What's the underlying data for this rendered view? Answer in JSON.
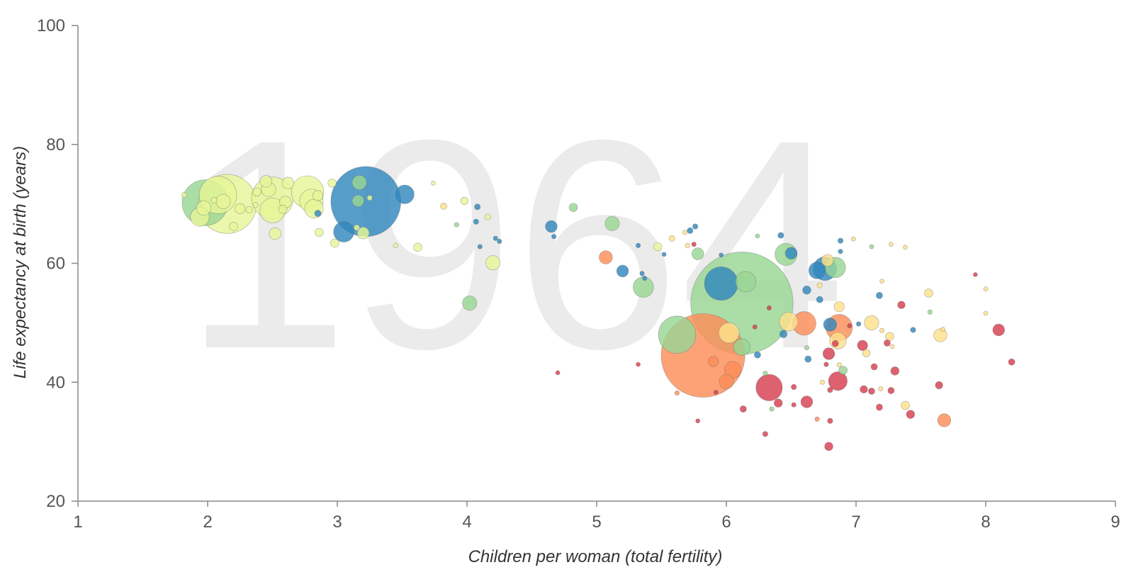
{
  "chart_data": {
    "type": "scatter",
    "year_label": "1964",
    "xlabel": "Children per woman (total fertility)",
    "ylabel": "Life expectancy at birth (years)",
    "xlim": [
      1,
      9
    ],
    "ylim": [
      20,
      100
    ],
    "x_ticks": [
      1,
      2,
      3,
      4,
      5,
      6,
      7,
      8,
      9
    ],
    "y_ticks": [
      20,
      40,
      60,
      80,
      100
    ],
    "region_colors": {
      "europe": "#e6f598",
      "americas": "#3288bd",
      "east_asia": "#99d594",
      "south_asia": "#fc8d59",
      "middle_east": "#fee08b",
      "africa": "#d53e4f"
    },
    "points": [
      {
        "x": 1.82,
        "y": 71.5,
        "pop": 0.4,
        "region": "europe"
      },
      {
        "x": 1.98,
        "y": 70.2,
        "pop": 30,
        "region": "east_asia"
      },
      {
        "x": 1.97,
        "y": 69.3,
        "pop": 3,
        "region": "europe"
      },
      {
        "x": 2.05,
        "y": 70.6,
        "pop": 0.5,
        "region": "europe"
      },
      {
        "x": 2.08,
        "y": 71.5,
        "pop": 20,
        "region": "europe"
      },
      {
        "x": 2.15,
        "y": 70.0,
        "pop": 50,
        "region": "europe"
      },
      {
        "x": 2.12,
        "y": 70.4,
        "pop": 3,
        "region": "europe"
      },
      {
        "x": 1.94,
        "y": 67.8,
        "pop": 5,
        "region": "europe"
      },
      {
        "x": 2.2,
        "y": 66.2,
        "pop": 1,
        "region": "europe"
      },
      {
        "x": 2.25,
        "y": 69.2,
        "pop": 1.5,
        "region": "europe"
      },
      {
        "x": 2.32,
        "y": 69.0,
        "pop": 0.6,
        "region": "europe"
      },
      {
        "x": 2.38,
        "y": 72.0,
        "pop": 1,
        "region": "europe"
      },
      {
        "x": 2.45,
        "y": 73.8,
        "pop": 2,
        "region": "europe"
      },
      {
        "x": 2.5,
        "y": 71.0,
        "pop": 25,
        "region": "europe"
      },
      {
        "x": 2.5,
        "y": 68.9,
        "pop": 9,
        "region": "europe"
      },
      {
        "x": 2.47,
        "y": 72.4,
        "pop": 3,
        "region": "europe"
      },
      {
        "x": 2.6,
        "y": 70.3,
        "pop": 2,
        "region": "europe"
      },
      {
        "x": 2.58,
        "y": 69.1,
        "pop": 1,
        "region": "europe"
      },
      {
        "x": 2.62,
        "y": 73.5,
        "pop": 2,
        "region": "europe"
      },
      {
        "x": 2.52,
        "y": 65.0,
        "pop": 2,
        "region": "europe"
      },
      {
        "x": 2.37,
        "y": 69.8,
        "pop": 0.4,
        "region": "europe"
      },
      {
        "x": 2.77,
        "y": 72.0,
        "pop": 15,
        "region": "europe"
      },
      {
        "x": 2.8,
        "y": 70.5,
        "pop": 8,
        "region": "europe"
      },
      {
        "x": 2.82,
        "y": 69.2,
        "pop": 5,
        "region": "europe"
      },
      {
        "x": 2.85,
        "y": 71.4,
        "pop": 1.5,
        "region": "europe"
      },
      {
        "x": 2.85,
        "y": 68.4,
        "pop": 0.6,
        "region": "americas"
      },
      {
        "x": 2.86,
        "y": 65.2,
        "pop": 1,
        "region": "europe"
      },
      {
        "x": 2.96,
        "y": 73.5,
        "pop": 1,
        "region": "europe"
      },
      {
        "x": 2.98,
        "y": 63.4,
        "pop": 1,
        "region": "europe"
      },
      {
        "x": 3.15,
        "y": 66.0,
        "pop": 0.5,
        "region": "europe"
      },
      {
        "x": 3.05,
        "y": 65.3,
        "pop": 6,
        "region": "americas"
      },
      {
        "x": 3.22,
        "y": 70.4,
        "pop": 70,
        "region": "americas"
      },
      {
        "x": 3.17,
        "y": 73.6,
        "pop": 3,
        "region": "east_asia"
      },
      {
        "x": 3.16,
        "y": 70.5,
        "pop": 2,
        "region": "east_asia"
      },
      {
        "x": 3.2,
        "y": 65.1,
        "pop": 2,
        "region": "europe"
      },
      {
        "x": 3.25,
        "y": 71.0,
        "pop": 0.4,
        "region": "europe"
      },
      {
        "x": 3.52,
        "y": 71.6,
        "pop": 5,
        "region": "americas"
      },
      {
        "x": 3.45,
        "y": 63.0,
        "pop": 0.3,
        "region": "europe"
      },
      {
        "x": 3.62,
        "y": 62.7,
        "pop": 1,
        "region": "europe"
      },
      {
        "x": 3.74,
        "y": 73.5,
        "pop": 0.2,
        "region": "europe"
      },
      {
        "x": 3.82,
        "y": 69.6,
        "pop": 0.6,
        "region": "middle_east"
      },
      {
        "x": 3.92,
        "y": 66.5,
        "pop": 0.3,
        "region": "east_asia"
      },
      {
        "x": 3.98,
        "y": 70.5,
        "pop": 0.8,
        "region": "europe"
      },
      {
        "x": 4.08,
        "y": 69.5,
        "pop": 0.5,
        "region": "americas"
      },
      {
        "x": 4.07,
        "y": 67.0,
        "pop": 0.4,
        "region": "americas"
      },
      {
        "x": 4.1,
        "y": 62.8,
        "pop": 0.3,
        "region": "americas"
      },
      {
        "x": 4.16,
        "y": 67.8,
        "pop": 0.5,
        "region": "europe"
      },
      {
        "x": 4.2,
        "y": 60.1,
        "pop": 3,
        "region": "europe"
      },
      {
        "x": 4.02,
        "y": 53.3,
        "pop": 3,
        "region": "east_asia"
      },
      {
        "x": 4.22,
        "y": 64.2,
        "pop": 0.3,
        "region": "americas"
      },
      {
        "x": 4.25,
        "y": 63.7,
        "pop": 0.3,
        "region": "americas"
      },
      {
        "x": 4.65,
        "y": 66.2,
        "pop": 2,
        "region": "americas"
      },
      {
        "x": 4.67,
        "y": 64.5,
        "pop": 0.3,
        "region": "americas"
      },
      {
        "x": 4.7,
        "y": 41.6,
        "pop": 0.2,
        "region": "africa"
      },
      {
        "x": 4.82,
        "y": 69.4,
        "pop": 1,
        "region": "east_asia"
      },
      {
        "x": 5.07,
        "y": 61.0,
        "pop": 2.5,
        "region": "south_asia"
      },
      {
        "x": 5.12,
        "y": 66.7,
        "pop": 3,
        "region": "east_asia"
      },
      {
        "x": 5.2,
        "y": 58.7,
        "pop": 2,
        "region": "americas"
      },
      {
        "x": 5.32,
        "y": 63.0,
        "pop": 0.3,
        "region": "americas"
      },
      {
        "x": 5.35,
        "y": 58.3,
        "pop": 0.3,
        "region": "americas"
      },
      {
        "x": 5.37,
        "y": 57.5,
        "pop": 0.3,
        "region": "americas"
      },
      {
        "x": 5.36,
        "y": 56.0,
        "pop": 6,
        "region": "east_asia"
      },
      {
        "x": 5.32,
        "y": 43.0,
        "pop": 0.2,
        "region": "africa"
      },
      {
        "x": 5.47,
        "y": 62.8,
        "pop": 1,
        "region": "europe"
      },
      {
        "x": 5.52,
        "y": 61.5,
        "pop": 0.2,
        "region": "americas"
      },
      {
        "x": 5.58,
        "y": 64.2,
        "pop": 0.5,
        "region": "middle_east"
      },
      {
        "x": 5.62,
        "y": 48.0,
        "pop": 20,
        "region": "east_asia"
      },
      {
        "x": 5.62,
        "y": 38.2,
        "pop": 0.3,
        "region": "south_asia"
      },
      {
        "x": 5.68,
        "y": 65.2,
        "pop": 0.3,
        "region": "middle_east"
      },
      {
        "x": 5.7,
        "y": 63.0,
        "pop": 0.3,
        "region": "middle_east"
      },
      {
        "x": 5.72,
        "y": 65.5,
        "pop": 0.5,
        "region": "americas"
      },
      {
        "x": 5.78,
        "y": 61.6,
        "pop": 2,
        "region": "east_asia"
      },
      {
        "x": 5.78,
        "y": 33.5,
        "pop": 0.2,
        "region": "africa"
      },
      {
        "x": 5.76,
        "y": 66.2,
        "pop": 0.4,
        "region": "americas"
      },
      {
        "x": 5.75,
        "y": 63.2,
        "pop": 0.3,
        "region": "africa"
      },
      {
        "x": 5.82,
        "y": 44.5,
        "pop": 100,
        "region": "south_asia"
      },
      {
        "x": 5.9,
        "y": 43.5,
        "pop": 1.5,
        "region": "south_asia"
      },
      {
        "x": 5.92,
        "y": 38.3,
        "pop": 0.3,
        "region": "africa"
      },
      {
        "x": 5.96,
        "y": 56.6,
        "pop": 16,
        "region": "americas"
      },
      {
        "x": 6.0,
        "y": 40.1,
        "pop": 3,
        "region": "south_asia"
      },
      {
        "x": 6.02,
        "y": 48.3,
        "pop": 6,
        "region": "middle_east"
      },
      {
        "x": 6.05,
        "y": 42.1,
        "pop": 4,
        "region": "south_asia"
      },
      {
        "x": 5.96,
        "y": 61.4,
        "pop": 0.2,
        "region": "americas"
      },
      {
        "x": 6.12,
        "y": 53.3,
        "pop": 150,
        "region": "east_asia"
      },
      {
        "x": 6.15,
        "y": 56.9,
        "pop": 6,
        "region": "east_asia"
      },
      {
        "x": 6.12,
        "y": 45.9,
        "pop": 4,
        "region": "east_asia"
      },
      {
        "x": 6.13,
        "y": 35.5,
        "pop": 0.6,
        "region": "africa"
      },
      {
        "x": 6.22,
        "y": 49.3,
        "pop": 0.3,
        "region": "africa"
      },
      {
        "x": 6.24,
        "y": 44.6,
        "pop": 0.6,
        "region": "americas"
      },
      {
        "x": 6.24,
        "y": 64.6,
        "pop": 0.2,
        "region": "east_asia"
      },
      {
        "x": 6.3,
        "y": 31.3,
        "pop": 0.4,
        "region": "africa"
      },
      {
        "x": 6.3,
        "y": 41.5,
        "pop": 0.3,
        "region": "east_asia"
      },
      {
        "x": 6.33,
        "y": 39.1,
        "pop": 10,
        "region": "africa"
      },
      {
        "x": 6.33,
        "y": 52.5,
        "pop": 0.3,
        "region": "africa"
      },
      {
        "x": 6.35,
        "y": 35.5,
        "pop": 0.3,
        "region": "east_asia"
      },
      {
        "x": 6.4,
        "y": 36.5,
        "pop": 1,
        "region": "africa"
      },
      {
        "x": 6.42,
        "y": 64.7,
        "pop": 0.5,
        "region": "americas"
      },
      {
        "x": 6.46,
        "y": 61.5,
        "pop": 7,
        "region": "east_asia"
      },
      {
        "x": 6.44,
        "y": 48.1,
        "pop": 0.8,
        "region": "americas"
      },
      {
        "x": 6.48,
        "y": 50.2,
        "pop": 5,
        "region": "middle_east"
      },
      {
        "x": 6.5,
        "y": 61.7,
        "pop": 2,
        "region": "americas"
      },
      {
        "x": 6.52,
        "y": 39.2,
        "pop": 0.4,
        "region": "africa"
      },
      {
        "x": 6.52,
        "y": 36.2,
        "pop": 0.3,
        "region": "africa"
      },
      {
        "x": 6.6,
        "y": 49.9,
        "pop": 8,
        "region": "south_asia"
      },
      {
        "x": 6.62,
        "y": 36.7,
        "pop": 2,
        "region": "africa"
      },
      {
        "x": 6.62,
        "y": 55.5,
        "pop": 1,
        "region": "americas"
      },
      {
        "x": 6.62,
        "y": 45.8,
        "pop": 0.3,
        "region": "east_asia"
      },
      {
        "x": 6.63,
        "y": 43.9,
        "pop": 0.6,
        "region": "americas"
      },
      {
        "x": 6.7,
        "y": 58.8,
        "pop": 4,
        "region": "americas"
      },
      {
        "x": 6.72,
        "y": 53.9,
        "pop": 0.6,
        "region": "americas"
      },
      {
        "x": 6.76,
        "y": 59.1,
        "pop": 8,
        "region": "americas"
      },
      {
        "x": 6.72,
        "y": 56.3,
        "pop": 0.4,
        "region": "middle_east"
      },
      {
        "x": 6.7,
        "y": 33.8,
        "pop": 0.3,
        "region": "south_asia"
      },
      {
        "x": 6.74,
        "y": 40.0,
        "pop": 0.3,
        "region": "middle_east"
      },
      {
        "x": 6.77,
        "y": 43.0,
        "pop": 0.3,
        "region": "africa"
      },
      {
        "x": 6.78,
        "y": 60.5,
        "pop": 2,
        "region": "middle_east"
      },
      {
        "x": 6.79,
        "y": 44.8,
        "pop": 2,
        "region": "africa"
      },
      {
        "x": 6.79,
        "y": 29.2,
        "pop": 1,
        "region": "africa"
      },
      {
        "x": 6.8,
        "y": 49.7,
        "pop": 2.5,
        "region": "americas"
      },
      {
        "x": 6.8,
        "y": 33.5,
        "pop": 0.4,
        "region": "africa"
      },
      {
        "x": 6.8,
        "y": 38.7,
        "pop": 0.4,
        "region": "africa"
      },
      {
        "x": 6.84,
        "y": 59.3,
        "pop": 6,
        "region": "east_asia"
      },
      {
        "x": 6.84,
        "y": 46.5,
        "pop": 0.6,
        "region": "africa"
      },
      {
        "x": 6.87,
        "y": 49.2,
        "pop": 10,
        "region": "south_asia"
      },
      {
        "x": 6.86,
        "y": 47.0,
        "pop": 4,
        "region": "middle_east"
      },
      {
        "x": 6.86,
        "y": 40.2,
        "pop": 5,
        "region": "africa"
      },
      {
        "x": 6.87,
        "y": 52.7,
        "pop": 1.5,
        "region": "middle_east"
      },
      {
        "x": 6.87,
        "y": 42.9,
        "pop": 0.3,
        "region": "middle_east"
      },
      {
        "x": 6.88,
        "y": 63.8,
        "pop": 0.4,
        "region": "americas"
      },
      {
        "x": 6.88,
        "y": 62.0,
        "pop": 0.3,
        "region": "americas"
      },
      {
        "x": 6.9,
        "y": 42.0,
        "pop": 1,
        "region": "east_asia"
      },
      {
        "x": 6.95,
        "y": 49.5,
        "pop": 0.3,
        "region": "africa"
      },
      {
        "x": 6.98,
        "y": 64.1,
        "pop": 0.2,
        "region": "middle_east"
      },
      {
        "x": 7.02,
        "y": 49.8,
        "pop": 0.3,
        "region": "americas"
      },
      {
        "x": 7.05,
        "y": 46.2,
        "pop": 1.5,
        "region": "africa"
      },
      {
        "x": 7.06,
        "y": 38.8,
        "pop": 0.8,
        "region": "africa"
      },
      {
        "x": 7.08,
        "y": 44.9,
        "pop": 0.8,
        "region": "middle_east"
      },
      {
        "x": 7.12,
        "y": 50.0,
        "pop": 3,
        "region": "middle_east"
      },
      {
        "x": 7.12,
        "y": 62.8,
        "pop": 0.2,
        "region": "east_asia"
      },
      {
        "x": 7.12,
        "y": 38.5,
        "pop": 0.6,
        "region": "africa"
      },
      {
        "x": 7.14,
        "y": 42.6,
        "pop": 0.6,
        "region": "africa"
      },
      {
        "x": 7.18,
        "y": 54.6,
        "pop": 0.6,
        "region": "americas"
      },
      {
        "x": 7.18,
        "y": 35.8,
        "pop": 0.6,
        "region": "africa"
      },
      {
        "x": 7.19,
        "y": 38.9,
        "pop": 0.3,
        "region": "middle_east"
      },
      {
        "x": 7.2,
        "y": 57.0,
        "pop": 0.2,
        "region": "middle_east"
      },
      {
        "x": 7.2,
        "y": 48.7,
        "pop": 0.3,
        "region": "middle_east"
      },
      {
        "x": 7.24,
        "y": 46.6,
        "pop": 0.6,
        "region": "africa"
      },
      {
        "x": 7.26,
        "y": 47.7,
        "pop": 1,
        "region": "middle_east"
      },
      {
        "x": 7.27,
        "y": 38.6,
        "pop": 0.6,
        "region": "africa"
      },
      {
        "x": 7.27,
        "y": 63.2,
        "pop": 0.2,
        "region": "middle_east"
      },
      {
        "x": 7.28,
        "y": 46.0,
        "pop": 0.2,
        "region": "middle_east"
      },
      {
        "x": 7.3,
        "y": 41.9,
        "pop": 1,
        "region": "africa"
      },
      {
        "x": 7.35,
        "y": 53.0,
        "pop": 0.8,
        "region": "africa"
      },
      {
        "x": 7.38,
        "y": 62.7,
        "pop": 0.2,
        "region": "middle_east"
      },
      {
        "x": 7.38,
        "y": 36.1,
        "pop": 1,
        "region": "middle_east"
      },
      {
        "x": 7.42,
        "y": 34.6,
        "pop": 1,
        "region": "africa"
      },
      {
        "x": 7.44,
        "y": 48.8,
        "pop": 0.4,
        "region": "americas"
      },
      {
        "x": 7.56,
        "y": 55.0,
        "pop": 1,
        "region": "middle_east"
      },
      {
        "x": 7.57,
        "y": 51.8,
        "pop": 0.3,
        "region": "east_asia"
      },
      {
        "x": 7.64,
        "y": 39.5,
        "pop": 0.8,
        "region": "africa"
      },
      {
        "x": 7.65,
        "y": 47.9,
        "pop": 2.5,
        "region": "middle_east"
      },
      {
        "x": 7.67,
        "y": 48.9,
        "pop": 0.2,
        "region": "middle_east"
      },
      {
        "x": 7.68,
        "y": 33.6,
        "pop": 2.5,
        "region": "south_asia"
      },
      {
        "x": 7.92,
        "y": 58.1,
        "pop": 0.2,
        "region": "africa"
      },
      {
        "x": 8.0,
        "y": 55.7,
        "pop": 0.2,
        "region": "middle_east"
      },
      {
        "x": 8.0,
        "y": 51.6,
        "pop": 0.2,
        "region": "middle_east"
      },
      {
        "x": 8.1,
        "y": 48.8,
        "pop": 2,
        "region": "africa"
      },
      {
        "x": 8.2,
        "y": 43.4,
        "pop": 0.6,
        "region": "africa"
      }
    ]
  }
}
